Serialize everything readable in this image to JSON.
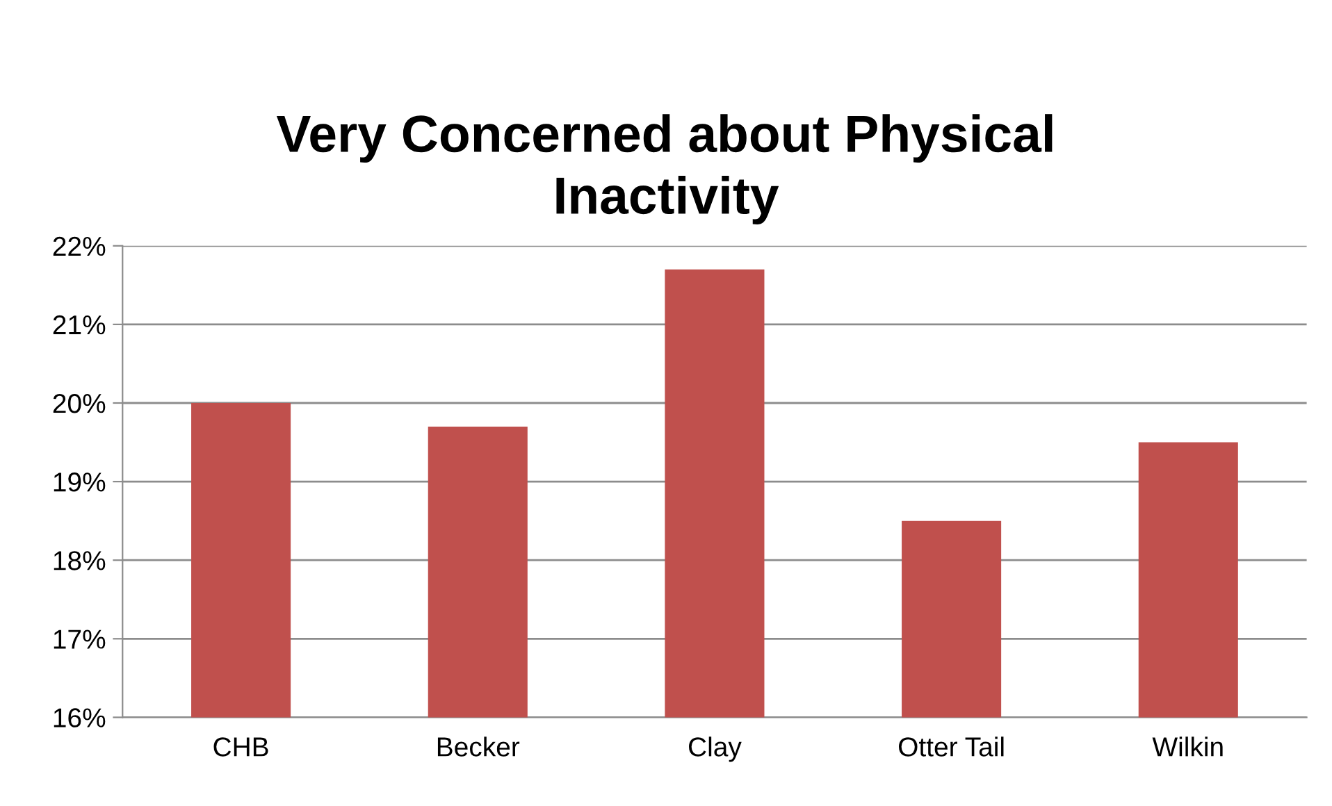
{
  "chart_data": {
    "type": "bar",
    "title": "Very Concerned about Physical\nInactivity",
    "categories": [
      "CHB",
      "Becker",
      "Clay",
      "Otter Tail",
      "Wilkin"
    ],
    "values": [
      20.0,
      19.7,
      21.7,
      18.5,
      19.5
    ],
    "color": "#c0504d",
    "ylim": [
      16,
      22
    ],
    "yticks": [
      {
        "value": 16,
        "label": "16%"
      },
      {
        "value": 17,
        "label": "17%"
      },
      {
        "value": 18,
        "label": "18%"
      },
      {
        "value": 19,
        "label": "19%"
      },
      {
        "value": 20,
        "label": "20%"
      },
      {
        "value": 21,
        "label": "21%"
      },
      {
        "value": 22,
        "label": "22%"
      }
    ],
    "grid": "y",
    "legend": false
  }
}
